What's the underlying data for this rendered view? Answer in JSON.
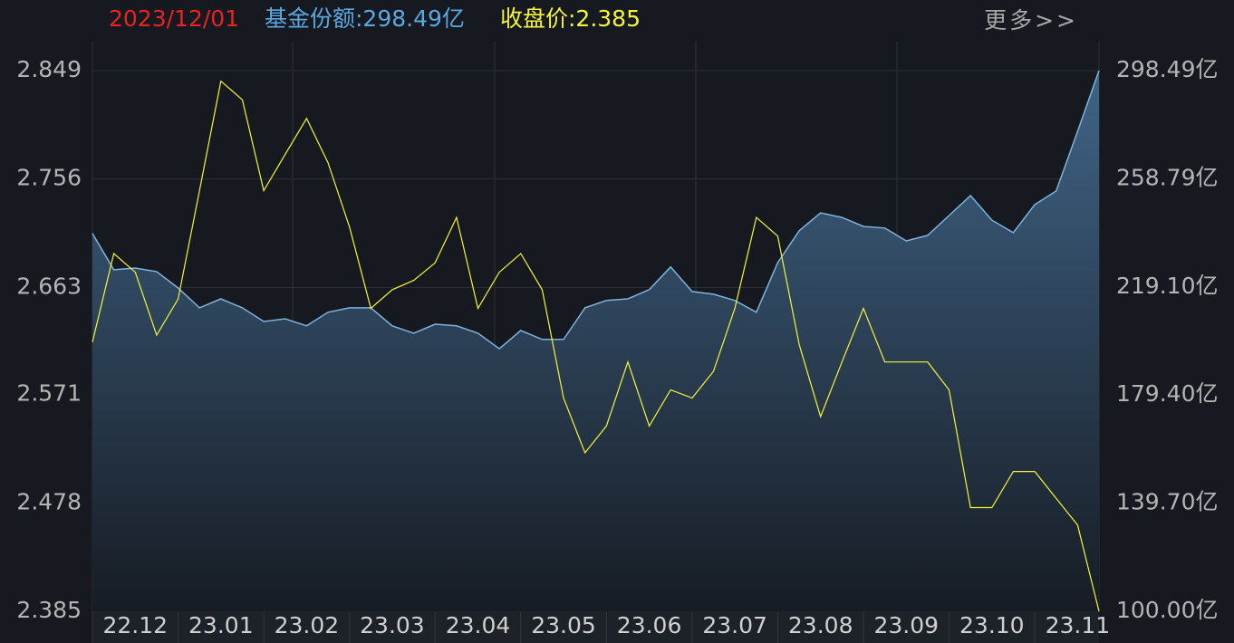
{
  "chart_data": {
    "type": "line",
    "header": {
      "date": "2023/12/01",
      "share": "基金份额:298.49亿",
      "price": "收盘价:2.385",
      "more": "更多>>"
    },
    "categories": [
      null,
      null,
      "22.12",
      null,
      null,
      null,
      "23.01",
      null,
      null,
      null,
      "23.02",
      null,
      null,
      null,
      "23.03",
      null,
      null,
      null,
      "23.04",
      null,
      null,
      null,
      "23.05",
      null,
      null,
      null,
      "23.06",
      null,
      null,
      null,
      "23.07",
      null,
      null,
      null,
      "23.08",
      null,
      null,
      null,
      "23.09",
      null,
      null,
      null,
      "23.10",
      null,
      null,
      null,
      "23.11",
      null
    ],
    "series": [
      {
        "color": "#7fb3dc",
        "axis": "y2",
        "area": true,
        "values": [
          238.7,
          225.4,
          226.0,
          224.7,
          218.7,
          211.4,
          214.7,
          211.4,
          206.4,
          207.4,
          204.8,
          209.8,
          211.4,
          211.4,
          204.8,
          202.1,
          205.4,
          204.8,
          202.1,
          196.4,
          203.1,
          199.8,
          199.8,
          211.4,
          214.1,
          214.7,
          218.1,
          226.4,
          217.4,
          216.4,
          214.1,
          209.8,
          228.0,
          239.7,
          246.3,
          244.6,
          241.3,
          240.7,
          236.0,
          238.0,
          245.3,
          252.6,
          243.6,
          239.0,
          249.3,
          254.3,
          276.2,
          298.49
        ]
      },
      {
        "color": "#f5f53a",
        "values": [
          2.616,
          2.692,
          2.676,
          2.622,
          2.653,
          2.746,
          2.84,
          2.824,
          2.746,
          2.777,
          2.808,
          2.77,
          2.715,
          2.645,
          2.661,
          2.669,
          2.684,
          2.723,
          2.645,
          2.676,
          2.692,
          2.661,
          2.568,
          2.521,
          2.544,
          2.599,
          2.544,
          2.575,
          2.568,
          2.591,
          2.645,
          2.723,
          2.707,
          2.614,
          2.552,
          2.599,
          2.645,
          2.599,
          2.599,
          2.599,
          2.575,
          2.474,
          2.474,
          2.505,
          2.505,
          2.482,
          2.459,
          2.385
        ]
      }
    ],
    "ylim": [
      2.385,
      2.849
    ],
    "yticks": [
      2.849,
      2.756,
      2.663,
      2.571,
      2.478,
      2.385
    ],
    "y2lim": [
      100,
      298.49
    ],
    "y2ticks": [
      {
        "value": 298.49,
        "label": "298.49亿"
      },
      {
        "value": 258.79,
        "label": "258.79亿"
      },
      {
        "value": 219.1,
        "label": "219.10亿"
      },
      {
        "value": 179.4,
        "label": "179.40亿"
      },
      {
        "value": 139.7,
        "label": "139.70亿"
      },
      {
        "value": 100.0,
        "label": "100.00亿"
      }
    ],
    "grid": true
  }
}
